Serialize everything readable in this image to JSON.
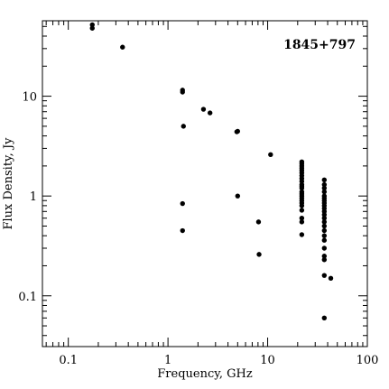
{
  "chart_data": {
    "type": "scatter",
    "title": "",
    "annotation": "1845+797",
    "xlabel": "Frequency, GHz",
    "ylabel": "Flux Density, Jy",
    "xscale": "log",
    "yscale": "log",
    "xlim": [
      0.055,
      100
    ],
    "ylim": [
      0.031,
      57
    ],
    "xticks": [
      0.1,
      1,
      10,
      100
    ],
    "xtick_labels": [
      "0.1",
      "1",
      "10",
      "100"
    ],
    "yticks": [
      0.1,
      1,
      10
    ],
    "ytick_labels": [
      "0.1",
      "1",
      "10"
    ],
    "grid": false,
    "legend": "none",
    "series": [
      {
        "marker_color": "#000000",
        "points": [
          [
            0.174,
            52
          ],
          [
            0.174,
            48
          ],
          [
            0.35,
            31
          ],
          [
            1.4,
            11.5
          ],
          [
            1.4,
            11.0
          ],
          [
            1.43,
            5.0
          ],
          [
            1.4,
            0.84
          ],
          [
            1.4,
            0.45
          ],
          [
            2.27,
            7.4
          ],
          [
            2.64,
            6.8
          ],
          [
            4.9,
            4.4
          ],
          [
            5.0,
            4.45
          ],
          [
            5.0,
            1.0
          ],
          [
            8.1,
            0.55
          ],
          [
            8.2,
            0.26
          ],
          [
            10.7,
            2.6
          ],
          [
            22.0,
            2.2
          ],
          [
            22.0,
            2.1
          ],
          [
            22.0,
            2.0
          ],
          [
            22.0,
            1.9
          ],
          [
            22.0,
            1.8
          ],
          [
            22.0,
            1.7
          ],
          [
            22.0,
            1.6
          ],
          [
            22.0,
            1.5
          ],
          [
            22.0,
            1.4
          ],
          [
            22.0,
            1.3
          ],
          [
            22.0,
            1.25
          ],
          [
            22.0,
            1.2
          ],
          [
            22.0,
            1.1
          ],
          [
            22.0,
            1.05
          ],
          [
            22.0,
            1.0
          ],
          [
            22.0,
            0.95
          ],
          [
            22.0,
            0.9
          ],
          [
            22.0,
            0.85
          ],
          [
            22.0,
            0.8
          ],
          [
            22.0,
            0.72
          ],
          [
            22.0,
            0.6
          ],
          [
            22.0,
            0.55
          ],
          [
            22.0,
            0.41
          ],
          [
            37.0,
            1.45
          ],
          [
            37.0,
            1.3
          ],
          [
            37.0,
            1.2
          ],
          [
            37.0,
            1.1
          ],
          [
            37.0,
            1.0
          ],
          [
            37.0,
            0.95
          ],
          [
            37.0,
            0.9
          ],
          [
            37.0,
            0.85
          ],
          [
            37.0,
            0.8
          ],
          [
            37.0,
            0.75
          ],
          [
            37.0,
            0.7
          ],
          [
            37.0,
            0.65
          ],
          [
            37.0,
            0.6
          ],
          [
            37.0,
            0.55
          ],
          [
            37.0,
            0.5
          ],
          [
            37.0,
            0.45
          ],
          [
            37.0,
            0.4
          ],
          [
            37.0,
            0.36
          ],
          [
            37.0,
            0.3
          ],
          [
            37.0,
            0.25
          ],
          [
            37.0,
            0.23
          ],
          [
            37.0,
            0.16
          ],
          [
            37.0,
            0.06
          ],
          [
            43.0,
            0.15
          ]
        ]
      }
    ]
  }
}
